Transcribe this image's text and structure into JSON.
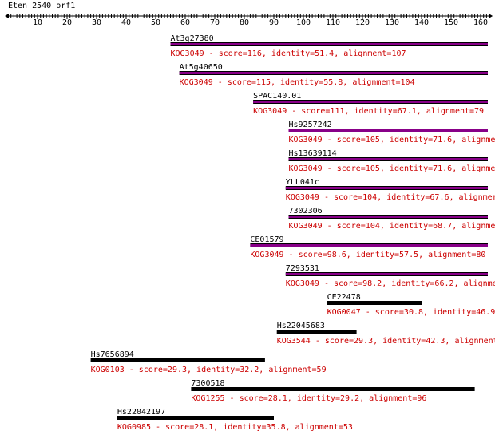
{
  "query": {
    "name": "Eten_2540_orf1",
    "length": 163,
    "axis_ticks": [
      10,
      20,
      30,
      40,
      50,
      60,
      70,
      80,
      90,
      100,
      110,
      120,
      130,
      140,
      150,
      160
    ]
  },
  "colors": {
    "hit_bar_highlight": "#880088",
    "hit_bar_plain": "#000000",
    "annotation_text": "#cc0000",
    "label_text": "#000000"
  },
  "hits": [
    {
      "name": "At3g27380",
      "start": 55,
      "end": 163,
      "highlight": true,
      "annotation": "KOG3049 - score=116, identity=51.4, alignment=107"
    },
    {
      "name": "At5g40650",
      "start": 58,
      "end": 163,
      "highlight": true,
      "annotation": "KOG3049 - score=115, identity=55.8, alignment=104"
    },
    {
      "name": "SPAC140.01",
      "start": 83,
      "end": 163,
      "highlight": true,
      "annotation": "KOG3049 - score=111, identity=67.1, alignment=79"
    },
    {
      "name": "Hs9257242",
      "start": 95,
      "end": 163,
      "highlight": true,
      "annotation": "KOG3049 - score=105, identity=71.6, alignme"
    },
    {
      "name": "Hs13639114",
      "start": 95,
      "end": 163,
      "highlight": true,
      "annotation": "KOG3049 - score=105, identity=71.6, alignme"
    },
    {
      "name": "YLL041c",
      "start": 94,
      "end": 163,
      "highlight": true,
      "annotation": "KOG3049 - score=104, identity=67.6, alignmer"
    },
    {
      "name": "7302306",
      "start": 95,
      "end": 163,
      "highlight": true,
      "annotation": "KOG3049 - score=104, identity=68.7, alignme"
    },
    {
      "name": "CE01579",
      "start": 82,
      "end": 163,
      "highlight": true,
      "annotation": "KOG3049 - score=98.6, identity=57.5, alignment=80"
    },
    {
      "name": "7293531",
      "start": 94,
      "end": 163,
      "highlight": true,
      "annotation": "KOG3049 - score=98.2, identity=66.2, alignme"
    },
    {
      "name": "CE22478",
      "start": 108,
      "end": 140,
      "highlight": false,
      "annotation": "KOG0047 - score=30.8, identity=46.9"
    },
    {
      "name": "Hs22045683",
      "start": 91,
      "end": 118,
      "highlight": false,
      "annotation": "KOG3544 - score=29.3, identity=42.3, alignment"
    },
    {
      "name": "Hs7656894",
      "start": 28,
      "end": 87,
      "highlight": false,
      "annotation": "KOG0103 - score=29.3, identity=32.2, alignment=59"
    },
    {
      "name": "7300518",
      "start": 62,
      "end": 158,
      "highlight": false,
      "annotation": "KOG1255 - score=28.1, identity=29.2, alignment=96"
    },
    {
      "name": "Hs22042197",
      "start": 37,
      "end": 90,
      "highlight": false,
      "annotation": "KOG0985 - score=28.1, identity=35.8, alignment=53"
    }
  ]
}
